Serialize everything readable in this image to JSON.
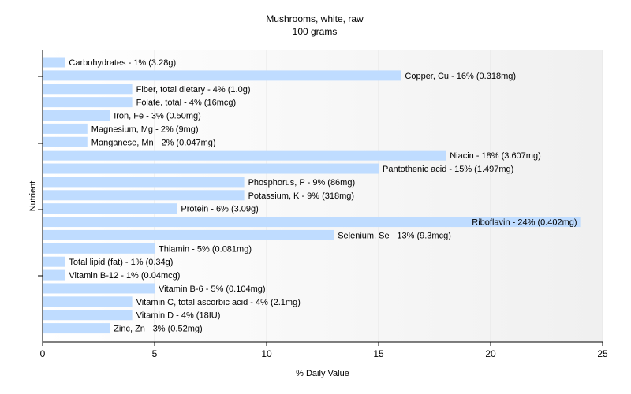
{
  "chart_data": {
    "type": "bar",
    "orientation": "horizontal",
    "title": "Mushrooms, white, raw",
    "subtitle": "100 grams",
    "xlabel": "% Daily Value",
    "ylabel": "Nutrient",
    "xlim": [
      0,
      25
    ],
    "xticks": [
      0,
      5,
      10,
      15,
      20,
      25
    ],
    "grid": true,
    "bar_color": "#bfdcff",
    "categories": [
      "Carbohydrates",
      "Copper, Cu",
      "Fiber, total dietary",
      "Folate, total",
      "Iron, Fe",
      "Magnesium, Mg",
      "Manganese, Mn",
      "Niacin",
      "Pantothenic acid",
      "Phosphorus, P",
      "Potassium, K",
      "Protein",
      "Riboflavin",
      "Selenium, Se",
      "Thiamin",
      "Total lipid (fat)",
      "Vitamin B-12",
      "Vitamin B-6",
      "Vitamin C, total ascorbic acid",
      "Vitamin D",
      "Zinc, Zn"
    ],
    "values": [
      1,
      16,
      4,
      4,
      3,
      2,
      2,
      18,
      15,
      9,
      9,
      6,
      24,
      13,
      5,
      1,
      1,
      5,
      4,
      4,
      3
    ],
    "labels": [
      "Carbohydrates - 1% (3.28g)",
      "Copper, Cu - 16% (0.318mg)",
      "Fiber, total dietary - 4% (1.0g)",
      "Folate, total - 4% (16mcg)",
      "Iron, Fe - 3% (0.50mg)",
      "Magnesium, Mg - 2% (9mg)",
      "Manganese, Mn - 2% (0.047mg)",
      "Niacin - 18% (3.607mg)",
      "Pantothenic acid - 15% (1.497mg)",
      "Phosphorus, P - 9% (86mg)",
      "Potassium, K - 9% (318mg)",
      "Protein - 6% (3.09g)",
      "Riboflavin - 24% (0.402mg)",
      "Selenium, Se - 13% (9.3mcg)",
      "Thiamin - 5% (0.081mg)",
      "Total lipid (fat) - 1% (0.34g)",
      "Vitamin B-12 - 1% (0.04mcg)",
      "Vitamin B-6 - 5% (0.104mg)",
      "Vitamin C, total ascorbic acid - 4% (2.1mg)",
      "Vitamin D - 4% (18IU)",
      "Zinc, Zn - 3% (0.52mg)"
    ]
  }
}
